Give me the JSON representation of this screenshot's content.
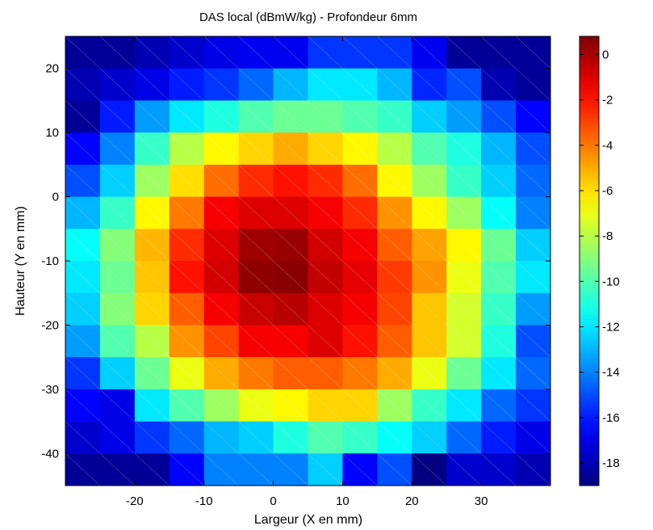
{
  "chart_data": {
    "type": "heatmap",
    "title": "DAS local (dBmW/kg) - Profondeur 6mm",
    "xlabel": "Largeur (X en mm)",
    "ylabel": "Hauteur (Y en mm)",
    "xlim": [
      -30,
      40
    ],
    "ylim": [
      -45,
      25
    ],
    "x_ticks": [
      -20,
      -10,
      0,
      10,
      20,
      30
    ],
    "y_ticks": [
      20,
      10,
      0,
      -10,
      -20,
      -30,
      -40
    ],
    "x_centers": [
      -27.5,
      -22.5,
      -17.5,
      -12.5,
      -7.5,
      -2.5,
      2.5,
      7.5,
      12.5,
      17.5,
      22.5,
      27.5,
      32.5,
      37.5
    ],
    "y_centers": [
      22.5,
      17.5,
      12.5,
      7.5,
      2.5,
      -2.5,
      -7.5,
      -12.5,
      -17.5,
      -22.5,
      -27.5,
      -32.5,
      -37.5,
      -42.5
    ],
    "colorbar": {
      "range": [
        -19,
        0.8
      ],
      "ticks": [
        0,
        -2,
        -4,
        -6,
        -8,
        -10,
        -12,
        -14,
        -16,
        -18
      ],
      "colormap": "jet"
    },
    "values": [
      [
        -18.5,
        -18.5,
        -18.0,
        -17.5,
        -17.0,
        -16.8,
        -16.8,
        -15.5,
        -15.5,
        -15.5,
        -16.8,
        -18.5,
        -18.5,
        -18.5
      ],
      [
        -18.0,
        -17.5,
        -17.0,
        -16.0,
        -15.5,
        -14.5,
        -13.0,
        -12.0,
        -12.0,
        -13.0,
        -15.8,
        -15.0,
        -18.0,
        -18.5
      ],
      [
        -18.5,
        -16.0,
        -13.5,
        -12.0,
        -11.0,
        -10.0,
        -9.5,
        -9.5,
        -10.0,
        -10.5,
        -12.5,
        -13.5,
        -15.0,
        -16.5
      ],
      [
        -16.5,
        -14.0,
        -10.5,
        -8.0,
        -6.5,
        -5.8,
        -5.0,
        -5.8,
        -6.5,
        -8.0,
        -10.0,
        -11.0,
        -13.0,
        -15.0
      ],
      [
        -15.0,
        -12.5,
        -8.5,
        -6.0,
        -3.8,
        -2.5,
        -2.0,
        -2.5,
        -3.8,
        -6.5,
        -8.5,
        -10.5,
        -12.5,
        -14.5
      ],
      [
        -13.0,
        -10.5,
        -6.5,
        -4.0,
        -1.5,
        -1.0,
        -1.0,
        -1.5,
        -2.5,
        -4.5,
        -6.5,
        -8.5,
        -11.5,
        -14.0
      ],
      [
        -11.5,
        -9.0,
        -5.2,
        -2.5,
        -1.0,
        0.2,
        0.3,
        -0.8,
        -1.5,
        -3.5,
        -4.8,
        -6.5,
        -9.5,
        -12.5
      ],
      [
        -12.0,
        -9.5,
        -5.5,
        -2.0,
        -0.8,
        0.5,
        0.6,
        -0.5,
        -1.2,
        -2.8,
        -4.5,
        -7.0,
        -10.0,
        -12.0
      ],
      [
        -12.5,
        -9.0,
        -5.8,
        -3.5,
        -1.5,
        -0.6,
        -0.3,
        -1.0,
        -1.5,
        -3.0,
        -5.5,
        -7.5,
        -10.5,
        -13.5
      ],
      [
        -13.5,
        -10.0,
        -8.0,
        -4.5,
        -3.0,
        -1.5,
        -1.5,
        -1.0,
        -2.0,
        -3.5,
        -5.5,
        -7.5,
        -11.0,
        -15.0
      ],
      [
        -15.5,
        -12.5,
        -9.5,
        -7.0,
        -5.0,
        -4.0,
        -3.5,
        -3.5,
        -4.0,
        -5.0,
        -7.0,
        -9.5,
        -12.0,
        -14.5
      ],
      [
        -16.5,
        -17.0,
        -12.0,
        -10.0,
        -8.5,
        -7.0,
        -6.5,
        -5.8,
        -5.8,
        -8.5,
        -10.5,
        -12.0,
        -14.5,
        -15.5
      ],
      [
        -17.5,
        -17.0,
        -15.5,
        -14.5,
        -13.0,
        -12.5,
        -11.0,
        -10.0,
        -10.5,
        -11.5,
        -12.5,
        -14.5,
        -16.0,
        -17.0
      ],
      [
        -18.5,
        -18.5,
        -18.5,
        -16.5,
        -14.0,
        -14.0,
        -14.0,
        -12.5,
        -16.5,
        -15.0,
        -19.0,
        -17.5,
        -17.5,
        -18.0
      ]
    ]
  }
}
